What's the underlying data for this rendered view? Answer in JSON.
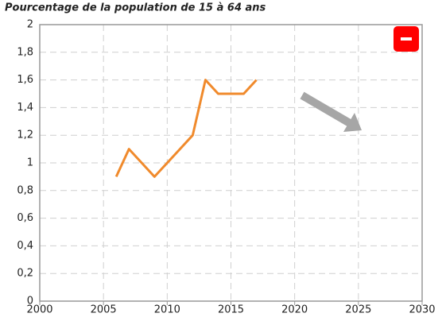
{
  "chart_data": {
    "type": "line",
    "title": "Pourcentage de la population de 15 à 64 ans",
    "x": [
      2006,
      2007,
      2008,
      2009,
      2010,
      2011,
      2012,
      2013,
      2014,
      2015,
      2016,
      2017
    ],
    "series": [
      {
        "color": "#f08a2c",
        "values": [
          0.9,
          1.1,
          1.0,
          0.9,
          1.0,
          1.1,
          1.2,
          1.6,
          1.5,
          1.5,
          1.5,
          1.6
        ]
      }
    ],
    "xlim": [
      2000,
      2030
    ],
    "xticks": [
      2000,
      2005,
      2010,
      2015,
      2020,
      2025,
      2030
    ],
    "ylim": [
      0,
      2
    ],
    "yticks": [
      0,
      {
        "value": 0.2,
        "label": "0,2"
      },
      {
        "value": 0.4,
        "label": "0,4"
      },
      {
        "value": 0.6,
        "label": "0,6"
      },
      {
        "value": 0.8,
        "label": "0,8"
      },
      1,
      {
        "value": 1.2,
        "label": "1,2"
      },
      {
        "value": 1.4,
        "label": "1,4"
      },
      {
        "value": 1.6,
        "label": "1,6"
      },
      {
        "value": 1.8,
        "label": "1,8"
      },
      2
    ],
    "grid": true
  }
}
